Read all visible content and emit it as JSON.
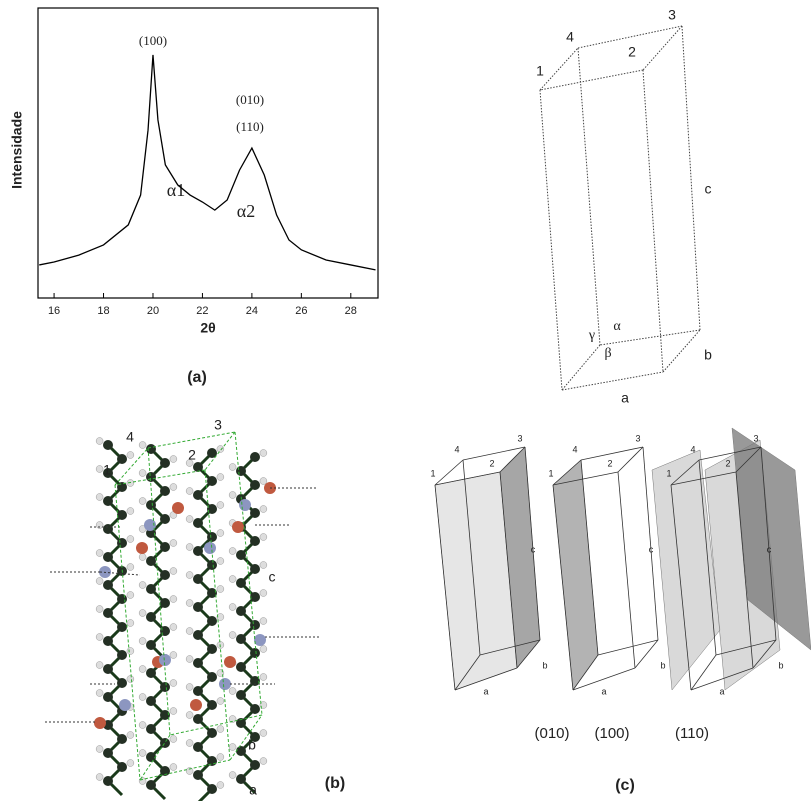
{
  "chart_data": {
    "type": "line",
    "x_label": "2θ",
    "y_label": "Intensidade",
    "panel_label": "(a)",
    "color": "#000000",
    "x": [
      15.4,
      16,
      17,
      18,
      19,
      19.5,
      19.8,
      20,
      20.2,
      20.5,
      21,
      21.5,
      22,
      22.5,
      23,
      23.5,
      24,
      24.5,
      25,
      25.5,
      26,
      27,
      28,
      29
    ],
    "values": [
      11.4,
      12.4,
      14.8,
      18.3,
      25.2,
      35.5,
      57.9,
      83.8,
      61.4,
      45.9,
      39,
      35.5,
      33.1,
      30.3,
      33.8,
      44.1,
      51.7,
      42.4,
      28.6,
      20,
      16.6,
      13.1,
      11.4,
      9.7
    ],
    "xlim": [
      15.35,
      29.1
    ],
    "xticks": [
      16,
      18,
      20,
      22,
      24,
      26,
      28
    ],
    "ylim": [
      0,
      100
    ],
    "annotations": [
      "(100)",
      "(010)",
      "(110)",
      "α1",
      "α2"
    ]
  },
  "unit_cell": {
    "corner_labels": [
      "1",
      "4",
      "3",
      "2"
    ],
    "axis_labels": [
      "a",
      "b",
      "c"
    ],
    "angle_labels": [
      "α",
      "β",
      "γ"
    ]
  },
  "packing": {
    "corner_labels": [
      "1",
      "4",
      "3",
      "2"
    ],
    "axis_labels": [
      "a",
      "b",
      "c"
    ],
    "panel_label": "(b)"
  },
  "planes": {
    "panels": [
      {
        "corner_labels": [
          "1",
          "4",
          "3",
          "2"
        ],
        "axis_labels": [
          "a",
          "b",
          "c"
        ]
      },
      {
        "corner_labels": [
          "1",
          "4",
          "3",
          "2"
        ],
        "axis_labels": [
          "a",
          "b",
          "c"
        ]
      },
      {
        "corner_labels": [
          "1",
          "4",
          "3",
          "2"
        ],
        "axis_labels": [
          "a",
          "b",
          "c"
        ]
      }
    ],
    "plane_labels": [
      "(010)",
      "(100)",
      "(110)"
    ],
    "panel_label": "(c)"
  }
}
